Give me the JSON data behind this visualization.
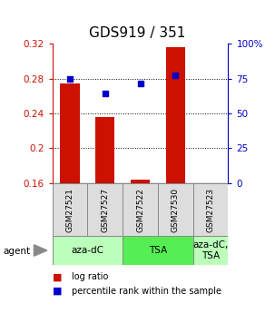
{
  "title": "GDS919 / 351",
  "samples": [
    "GSM27521",
    "GSM27527",
    "GSM27522",
    "GSM27530",
    "GSM27523"
  ],
  "bar_values": [
    0.274,
    0.236,
    0.164,
    0.316,
    0.16
  ],
  "bar_bottom": 0.16,
  "blue_values": [
    0.28,
    0.263,
    0.274,
    0.284,
    null
  ],
  "ylim": [
    0.16,
    0.32
  ],
  "yticks_left": [
    0.16,
    0.2,
    0.24,
    0.28,
    0.32
  ],
  "yticks_right": [
    0,
    25,
    50,
    75,
    100
  ],
  "bar_color": "#cc1100",
  "blue_color": "#0000cc",
  "agent_groups": [
    {
      "label": "aza-dC",
      "cols": [
        0,
        1
      ],
      "color": "#bbffbb"
    },
    {
      "label": "TSA",
      "cols": [
        2,
        3
      ],
      "color": "#55ee55"
    },
    {
      "label": "aza-dC,\nTSA",
      "cols": [
        4
      ],
      "color": "#bbffbb"
    }
  ],
  "legend_bar_label": "log ratio",
  "legend_blue_label": "percentile rank within the sample",
  "agent_label": "agent",
  "bar_width": 0.55,
  "title_fontsize": 11,
  "tick_fontsize": 7.5,
  "sample_fontsize": 6.5,
  "agent_fontsize": 7.5,
  "legend_fontsize": 7
}
